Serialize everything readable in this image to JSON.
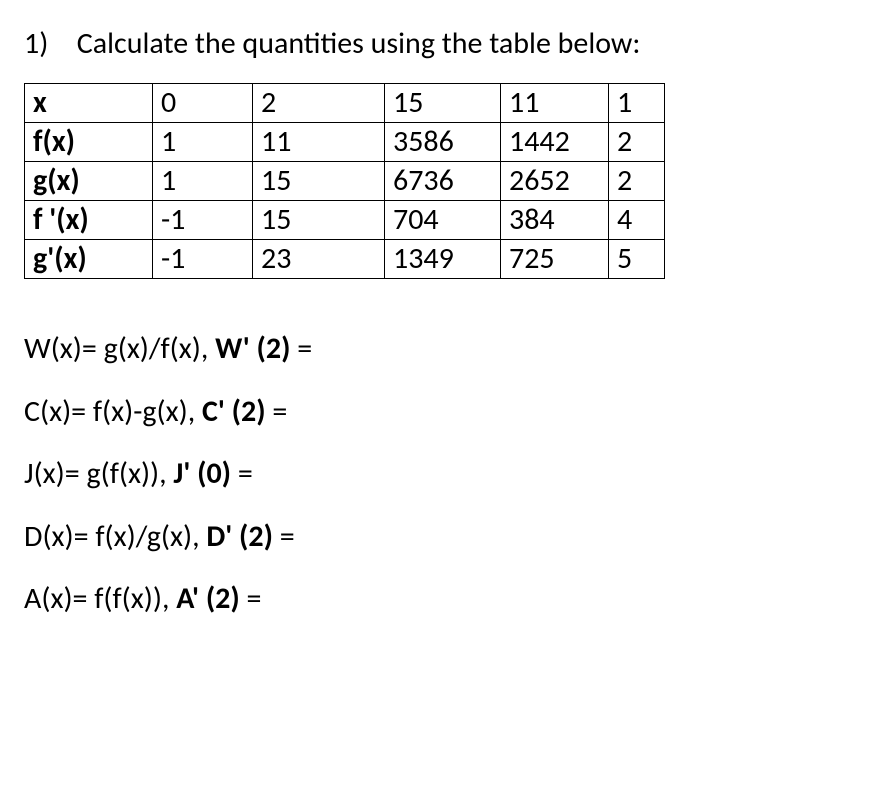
{
  "heading": {
    "number": "1)",
    "text": "Calculate the quantities using the table below:"
  },
  "table": {
    "rows": [
      {
        "label": "x",
        "values": [
          "0",
          "2",
          "15",
          "11",
          "1"
        ]
      },
      {
        "label": "f(x)",
        "values": [
          "1",
          "11",
          "3586",
          "1442",
          "2"
        ]
      },
      {
        "label": "g(x)",
        "values": [
          "1",
          "15",
          "6736",
          "2652",
          "2"
        ]
      },
      {
        "label": "f '(x)",
        "values": [
          "-1",
          "15",
          "704",
          "384",
          "4"
        ]
      },
      {
        "label": "g'(x)",
        "values": [
          "-1",
          "23",
          "1349",
          "725",
          "5"
        ]
      }
    ]
  },
  "equations": [
    {
      "lhs": "W(x)= g(x)/f(x), ",
      "boldLhs": "W' (2)",
      "eq": " ="
    },
    {
      "lhs": "C(x)= f(x)-g(x), ",
      "boldLhs": "C' (2)",
      "eq": " ="
    },
    {
      "lhs": "J(x)= g(f(x)), ",
      "boldLhs": "J' (0)",
      "eq": " ="
    },
    {
      "lhs": "D(x)= f(x)/g(x), ",
      "boldLhs": "D' (2)",
      "eq": " ="
    },
    {
      "lhs": "A(x)= f(f(x)), ",
      "boldLhs": "A' (2)",
      "eq": " ="
    }
  ],
  "styles": {
    "background_color": "#ffffff",
    "text_color": "#000000",
    "border_color": "#000000",
    "font_family": "Calibri, Arial, sans-serif",
    "base_font_size": 30
  }
}
